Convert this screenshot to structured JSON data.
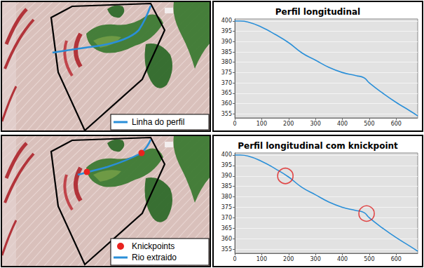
{
  "chart_data": [
    {
      "type": "line",
      "title": "Perfil longitudinal",
      "x": [
        0,
        20,
        50,
        100,
        150,
        200,
        250,
        300,
        350,
        400,
        450,
        480,
        500,
        550,
        600,
        650,
        680
      ],
      "values": [
        400,
        400,
        399.5,
        397,
        393.5,
        389.5,
        384.5,
        381,
        377.5,
        375,
        373.5,
        372.5,
        370,
        365,
        360.5,
        356.5,
        354
      ],
      "color": "#2a8fd8",
      "xlim": [
        0,
        680
      ],
      "xticks": [
        0,
        100,
        200,
        300,
        400,
        500,
        600
      ],
      "ylim": [
        353,
        401
      ],
      "yticks": [
        355,
        360,
        365,
        370,
        375,
        380,
        385,
        390,
        395,
        400
      ],
      "grid": true
    },
    {
      "type": "line",
      "title": "Perfil longitudinal com knickpoint",
      "x": [
        0,
        20,
        50,
        100,
        150,
        200,
        250,
        300,
        350,
        400,
        450,
        480,
        500,
        550,
        600,
        650,
        680
      ],
      "values": [
        400,
        400,
        399.5,
        397,
        393.5,
        389.5,
        384.5,
        381,
        377.5,
        375,
        373.5,
        372.5,
        370,
        365,
        360.5,
        356.5,
        354
      ],
      "color": "#2a8fd8",
      "xlim": [
        0,
        680
      ],
      "xticks": [
        0,
        100,
        200,
        300,
        400,
        500,
        600
      ],
      "ylim": [
        353,
        401
      ],
      "yticks": [
        355,
        360,
        365,
        370,
        375,
        380,
        385,
        390,
        395,
        400
      ],
      "grid": true,
      "knickpoints": {
        "x": [
          188,
          490
        ],
        "y": [
          390,
          372
        ],
        "color": "#e02020",
        "marker": "circle"
      }
    }
  ],
  "maps": [
    {
      "legend": [
        {
          "label": "Linha do perfil",
          "marker": "line",
          "color": "#2a8fd8"
        }
      ]
    },
    {
      "legend": [
        {
          "label": "Knickpoints",
          "marker": "circle",
          "color": "#e8231f"
        },
        {
          "label": "Rio extraido",
          "marker": "line",
          "color": "#2a8fd8"
        }
      ]
    }
  ]
}
